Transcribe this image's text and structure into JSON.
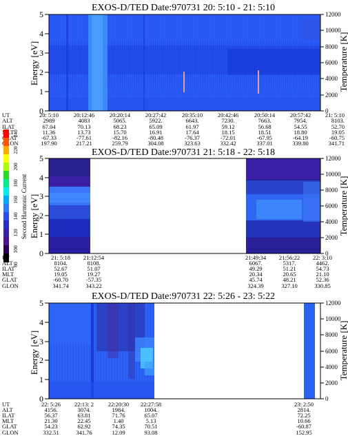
{
  "cbar": {
    "label": "Second Harmonic Current",
    "ticks": [
      "80",
      "100",
      "120",
      "140",
      "160",
      "180",
      "200",
      "220",
      "240"
    ]
  },
  "ephem_labels": [
    "UT",
    "ALT",
    "ILAT",
    "MLT",
    "GLAT",
    "GLON"
  ],
  "panels": [
    {
      "title": "EXOS-D/TED   Date:970731  20: 5:10 - 21: 5:10",
      "ylabel_left": "Energy [eV]",
      "ylabel_right": "Temperature [K]",
      "left_ticks": [
        "0",
        "1",
        "2",
        "3",
        "4",
        "5"
      ],
      "right_ticks": [
        "0",
        "2000",
        "4000",
        "6000",
        "8000",
        "10000",
        "12000"
      ],
      "ephem_cols": [
        [
          "20: 5:10",
          "2989",
          "67.04",
          "11.36",
          "-67.33",
          "197.90"
        ],
        [
          "20:12:46",
          "4083",
          "70.13",
          "13.73",
          "-77.61",
          "217.21"
        ],
        [
          "20:20:14",
          "5065.",
          "68.23",
          "15.70",
          "-82.16",
          "259.79"
        ],
        [
          "20:27:42",
          "5922.",
          "65.09",
          "16.91",
          "-80.48",
          "304.08"
        ],
        [
          "20:35:10",
          "6643.",
          "61.97",
          "17.64",
          "-76.37",
          "323.63"
        ],
        [
          "20:42:46",
          "7230.",
          "59.12",
          "18.15",
          "-72.01",
          "332.42"
        ],
        [
          "20:50:14",
          "7663.",
          "56.68",
          "18.51",
          "-67.95",
          "337.01"
        ],
        [
          "20:57:42",
          "7954.",
          "54.55",
          "18.80",
          "-64.19",
          "339.80"
        ],
        [
          "21: 5:10",
          "8103.",
          "52.70",
          "19.05",
          "-60.75",
          "341.71"
        ]
      ]
    },
    {
      "title": "EXOS-D/TED   Date:970731  21: 5:18 - 22: 5:18",
      "ylabel_left": "Energy [eV]",
      "ylabel_right": "Temperature [K]",
      "left_ticks": [
        "0",
        "1",
        "2",
        "3",
        "4",
        "5"
      ],
      "right_ticks": [
        "0",
        "2000",
        "4000",
        "6000",
        "8000",
        "10000",
        "12000"
      ],
      "ephem_cols": [
        [
          "21: 5:18",
          "8104.",
          "52.67",
          "19.05",
          "-60.70",
          "341.74"
        ],
        [
          "21:12:54",
          "8108.",
          "51.07",
          "19.27",
          "-57.35",
          "343.22"
        ],
        [
          "21:49:34",
          "6067.",
          "49.29",
          "20.34",
          "45.74",
          "324.39"
        ],
        [
          "21:56:22",
          "5317.",
          "51.21",
          "20.65",
          "48.21",
          "327.10"
        ],
        [
          "22: 3:10",
          "4462.",
          "54.73",
          "21.10",
          "52.36",
          "330.85"
        ]
      ]
    },
    {
      "title": "EXOS-D/TED   Date:970731  22: 5:26 - 23: 5:22",
      "ylabel_left": "Energy [eV]",
      "ylabel_right": "Temperature [K]",
      "left_ticks": [
        "0",
        "1",
        "2",
        "3",
        "4",
        "5"
      ],
      "right_ticks": [
        "0",
        "2000",
        "4000",
        "6000",
        "8000",
        "10000",
        "12000"
      ],
      "ephem_cols": [
        [
          "22: 5:26",
          "4156.",
          "56.37",
          "21.30",
          "54.23",
          "332.51"
        ],
        [
          "22:13: 2",
          "3074.",
          "63.81",
          "22.45",
          "62.92",
          "341.76"
        ],
        [
          "22:20:30",
          "1984.",
          "71.76",
          "1.40",
          "74.35",
          "12.09"
        ],
        [
          "22:27:58",
          "1004.",
          "65.07",
          "5.13",
          "70.51",
          "93.08"
        ],
        [
          "23: 2:50",
          "2814.",
          "72.25",
          "10.66",
          "-60.87",
          "152.95"
        ]
      ]
    }
  ],
  "chart_data": [
    {
      "type": "heatmap",
      "title": "EXOS-D/TED   Date:970731  20: 5:10 - 21: 5:10",
      "xlabel": "UT",
      "ylabel": "Energy [eV]",
      "ylabel_right": "Temperature [K]",
      "ylim": [
        0,
        5
      ],
      "ylim_right": [
        0,
        12000
      ],
      "x_ticks": [
        "20: 5:10",
        "20:12:46",
        "20:20:14",
        "20:27:42",
        "20:35:10",
        "20:42:46",
        "20:50:14",
        "20:57:42",
        "21: 5:10"
      ],
      "colorbar": {
        "label": "Second Harmonic Current",
        "range": [
          80,
          240
        ]
      },
      "data_coverage_ut": [
        [
          "20: 5:10",
          "21: 5:10"
        ]
      ],
      "dominant_level": 140
    },
    {
      "type": "heatmap",
      "title": "EXOS-D/TED   Date:970731  21: 5:18 - 22: 5:18",
      "xlabel": "UT",
      "ylabel": "Energy [eV]",
      "ylabel_right": "Temperature [K]",
      "ylim": [
        0,
        5
      ],
      "ylim_right": [
        0,
        12000
      ],
      "x_ticks": [
        "21: 5:18",
        "21:12:54",
        "21:49:34",
        "21:56:22",
        "22: 3:10"
      ],
      "colorbar": {
        "label": "Second Harmonic Current",
        "range": [
          80,
          240
        ]
      },
      "data_coverage_ut": [
        [
          "21: 5:18",
          "21:12:54"
        ],
        [
          "21:49:34",
          "22: 5:18"
        ]
      ],
      "dominant_level": 130
    },
    {
      "type": "heatmap",
      "title": "EXOS-D/TED   Date:970731  22: 5:26 - 23: 5:22",
      "xlabel": "UT",
      "ylabel": "Energy [eV]",
      "ylabel_right": "Temperature [K]",
      "ylim": [
        0,
        5
      ],
      "ylim_right": [
        0,
        12000
      ],
      "x_ticks": [
        "22: 5:26",
        "22:13: 2",
        "22:20:30",
        "22:27:58",
        "23: 2:50"
      ],
      "colorbar": {
        "label": "Second Harmonic Current",
        "range": [
          80,
          240
        ]
      },
      "data_coverage_ut": [
        [
          "22: 5:26",
          "22:27:58"
        ],
        [
          "23: 2:50",
          "23: 5:22"
        ]
      ],
      "dominant_level": 140
    }
  ]
}
